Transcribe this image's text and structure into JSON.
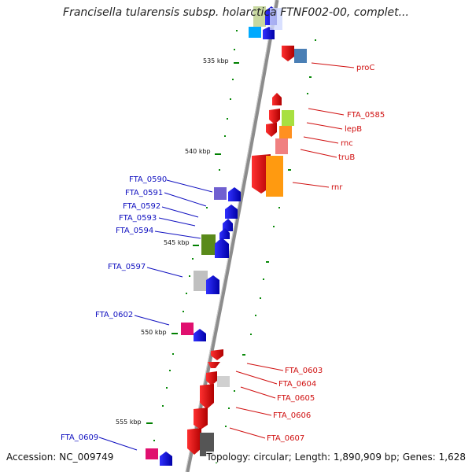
{
  "title": "Francisella tularensis subsp. holarctica FTNF002-00, complet...",
  "footer": {
    "accession": "Accession: NC_009749",
    "topology": "Topology: circular; Length: 1,890,909 bp; Genes: 1,628"
  },
  "kbp_ticks": [
    "535 kbp",
    "540 kbp",
    "545 kbp",
    "550 kbp",
    "555 kbp"
  ],
  "genes_right": [
    "proC",
    "FTA_0585",
    "lepB",
    "rnc",
    "truB",
    "rnr",
    "FTA_0603",
    "FTA_0604",
    "FTA_0605",
    "FTA_0606",
    "FTA_0607"
  ],
  "genes_left": [
    "FTA_0590",
    "FTA_0591",
    "FTA_0592",
    "FTA_0593",
    "FTA_0594",
    "FTA_0597",
    "FTA_0602",
    "FTA_0609"
  ],
  "colors": {
    "forward": "#e00000",
    "reverse": "#0000e0",
    "backbone": "#888888",
    "tick": "#008000"
  }
}
